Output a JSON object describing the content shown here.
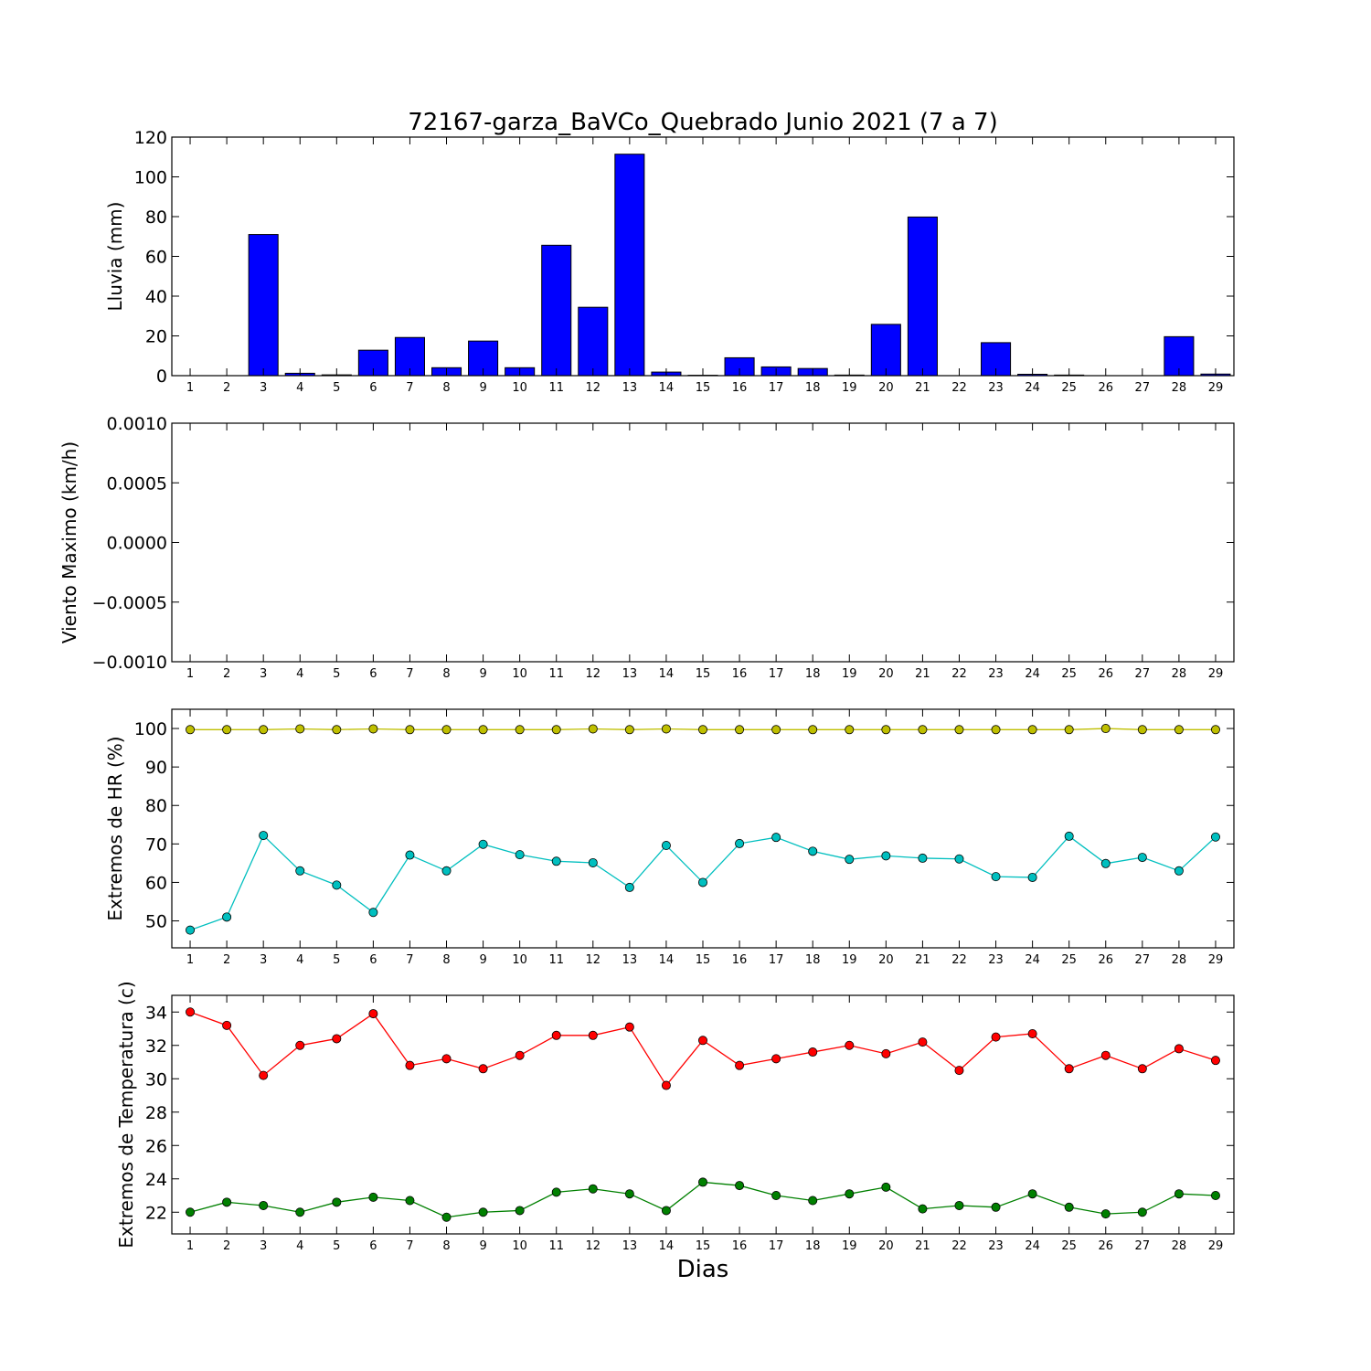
{
  "figure": {
    "title": "72167-garza_BaVCo_Quebrado Junio 2021  (7 a 7)",
    "xlabel": "Dias"
  },
  "chart_data": [
    {
      "type": "bar",
      "ylabel": "Lluvia (mm)",
      "x": [
        1,
        2,
        3,
        4,
        5,
        6,
        7,
        8,
        9,
        10,
        11,
        12,
        13,
        14,
        15,
        16,
        17,
        18,
        19,
        20,
        21,
        22,
        23,
        24,
        25,
        26,
        27,
        28,
        29
      ],
      "values": [
        0,
        0,
        71,
        1.2,
        0.4,
        12.8,
        19.2,
        4.0,
        17.4,
        4.0,
        65.6,
        34.4,
        111.4,
        1.8,
        0.2,
        9.0,
        4.4,
        3.6,
        0.3,
        25.8,
        79.8,
        0,
        16.6,
        0.7,
        0.3,
        0,
        0,
        19.6,
        0.8
      ],
      "ylim": [
        0,
        120
      ],
      "yticks": [
        0,
        20,
        40,
        60,
        80,
        100,
        120
      ],
      "colors": {
        "bar": "#0000ff"
      }
    },
    {
      "type": "line",
      "ylabel": "Viento Maximo (km/h)",
      "x": [
        1,
        2,
        3,
        4,
        5,
        6,
        7,
        8,
        9,
        10,
        11,
        12,
        13,
        14,
        15,
        16,
        17,
        18,
        19,
        20,
        21,
        22,
        23,
        24,
        25,
        26,
        27,
        28,
        29
      ],
      "series": [],
      "ylim": [
        -0.001,
        0.001
      ],
      "yticks": [
        "−0.0010",
        "−0.0005",
        "0.0000",
        "0.0005",
        "0.0010"
      ]
    },
    {
      "type": "line",
      "ylabel": "Extremos de HR (%)",
      "x": [
        1,
        2,
        3,
        4,
        5,
        6,
        7,
        8,
        9,
        10,
        11,
        12,
        13,
        14,
        15,
        16,
        17,
        18,
        19,
        20,
        21,
        22,
        23,
        24,
        25,
        26,
        27,
        28,
        29
      ],
      "series": [
        {
          "color": "#bfbf00",
          "values": [
            99.7,
            99.7,
            99.7,
            99.9,
            99.7,
            99.9,
            99.7,
            99.7,
            99.7,
            99.7,
            99.7,
            99.9,
            99.7,
            99.9,
            99.7,
            99.7,
            99.7,
            99.7,
            99.7,
            99.7,
            99.7,
            99.7,
            99.7,
            99.7,
            99.7,
            100.0,
            99.7,
            99.7,
            99.7
          ]
        },
        {
          "color": "#00bfbf",
          "values": [
            47.6,
            51.0,
            72.2,
            63.0,
            59.3,
            52.2,
            67.1,
            63.0,
            69.9,
            67.2,
            65.5,
            65.1,
            58.7,
            69.6,
            60.0,
            70.1,
            71.7,
            68.1,
            66.0,
            66.9,
            66.3,
            66.1,
            61.5,
            61.3,
            72.0,
            64.9,
            66.5,
            63.0,
            71.8
          ]
        }
      ],
      "ylim": [
        43,
        105
      ],
      "yticks": [
        50,
        60,
        70,
        80,
        90,
        100
      ]
    },
    {
      "type": "line",
      "ylabel": "Extremos de Temperatura (c)",
      "x": [
        1,
        2,
        3,
        4,
        5,
        6,
        7,
        8,
        9,
        10,
        11,
        12,
        13,
        14,
        15,
        16,
        17,
        18,
        19,
        20,
        21,
        22,
        23,
        24,
        25,
        26,
        27,
        28,
        29
      ],
      "series": [
        {
          "color": "#ff0000",
          "values": [
            34.0,
            33.2,
            30.2,
            32.0,
            32.4,
            33.9,
            30.8,
            31.2,
            30.6,
            31.4,
            32.6,
            32.6,
            33.1,
            29.6,
            32.3,
            30.8,
            31.2,
            31.6,
            32.0,
            31.5,
            32.2,
            30.5,
            32.5,
            32.7,
            30.6,
            31.4,
            30.6,
            31.8,
            31.1
          ]
        },
        {
          "color": "#008000",
          "values": [
            22.0,
            22.6,
            22.4,
            22.0,
            22.6,
            22.9,
            22.7,
            21.7,
            22.0,
            22.1,
            23.2,
            23.4,
            23.1,
            22.1,
            23.8,
            23.6,
            23.0,
            22.7,
            23.1,
            23.5,
            22.2,
            22.4,
            22.3,
            23.1,
            22.3,
            21.9,
            22.0,
            23.1,
            23.0
          ]
        }
      ],
      "ylim": [
        20.7,
        35.0
      ],
      "yticks": [
        22,
        24,
        26,
        28,
        30,
        32,
        34
      ]
    }
  ]
}
